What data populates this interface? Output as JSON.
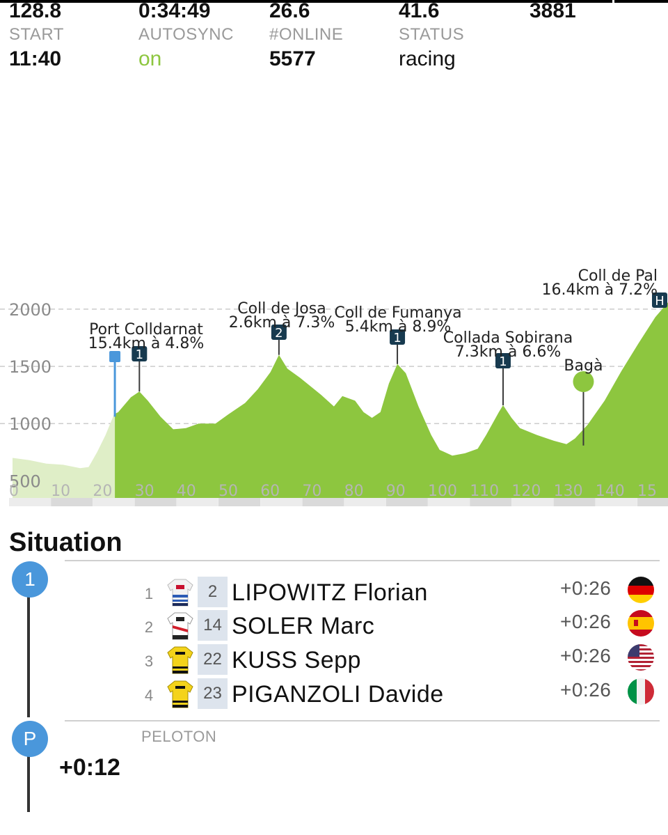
{
  "colors": {
    "accent_green": "#8dc63f",
    "timeline_blue": "#4a97db",
    "climb_marker": "#173a4f"
  },
  "stats": {
    "row1": [
      {
        "value": "128.8",
        "label": "START",
        "sub": "11:40"
      },
      {
        "value": "0:34:49",
        "label": "AUTOSYNC",
        "sub": "on"
      },
      {
        "value": "26.6",
        "label": "#ONLINE",
        "sub": "5577"
      },
      {
        "value": "41.6",
        "label": "STATUS",
        "sub": "racing"
      },
      {
        "value": "3881"
      }
    ]
  },
  "profile": {
    "y_ticks": [
      "2000",
      "1500",
      "1000",
      "500"
    ],
    "x_ticks": [
      "0",
      "10",
      "20",
      "30",
      "40",
      "50",
      "60",
      "70",
      "80",
      "90",
      "100",
      "110",
      "120",
      "130",
      "140",
      "15"
    ],
    "km_max": 155,
    "elev_min": 350,
    "elev_max": 2450,
    "current_km": 24.2,
    "elevation": [
      [
        0,
        700
      ],
      [
        4,
        680
      ],
      [
        8,
        650
      ],
      [
        12,
        640
      ],
      [
        16,
        610
      ],
      [
        18,
        620
      ],
      [
        20,
        750
      ],
      [
        22,
        900
      ],
      [
        24,
        1080
      ],
      [
        25,
        1100
      ],
      [
        28,
        1230
      ],
      [
        30,
        1280
      ],
      [
        32,
        1200
      ],
      [
        35,
        1060
      ],
      [
        38,
        950
      ],
      [
        41,
        960
      ],
      [
        44,
        1000
      ],
      [
        48,
        1000
      ],
      [
        51,
        1080
      ],
      [
        55,
        1180
      ],
      [
        58,
        1300
      ],
      [
        61,
        1450
      ],
      [
        63,
        1600
      ],
      [
        65,
        1480
      ],
      [
        68,
        1400
      ],
      [
        71,
        1310
      ],
      [
        73,
        1250
      ],
      [
        76,
        1150
      ],
      [
        78,
        1240
      ],
      [
        81,
        1200
      ],
      [
        83,
        1100
      ],
      [
        85,
        1050
      ],
      [
        87,
        1100
      ],
      [
        89,
        1350
      ],
      [
        91,
        1520
      ],
      [
        93,
        1440
      ],
      [
        96,
        1150
      ],
      [
        99,
        900
      ],
      [
        101,
        770
      ],
      [
        104,
        720
      ],
      [
        107,
        740
      ],
      [
        110,
        780
      ],
      [
        112,
        900
      ],
      [
        115,
        1100
      ],
      [
        116,
        1160
      ],
      [
        118,
        1050
      ],
      [
        120,
        960
      ],
      [
        124,
        900
      ],
      [
        128,
        850
      ],
      [
        131,
        820
      ],
      [
        133,
        870
      ],
      [
        136,
        990
      ],
      [
        140,
        1200
      ],
      [
        144,
        1460
      ],
      [
        148,
        1700
      ],
      [
        152,
        1930
      ],
      [
        155,
        2060
      ]
    ],
    "climbs": [
      {
        "name": "Port Colldarnat",
        "detail": "15.4km à 4.8%",
        "cat": "1",
        "km": 30,
        "elev": 1280
      },
      {
        "name": "Coll de Josa",
        "detail": "2.6km à 7.3%",
        "cat": "2",
        "km": 63,
        "elev": 1600
      },
      {
        "name": "Coll de Fumanya",
        "detail": "5.4km à 8.9%",
        "cat": "1",
        "km": 91,
        "elev": 1520
      },
      {
        "name": "Collada Sobirana",
        "detail": "7.3km à 6.6%",
        "cat": "1",
        "km": 116,
        "elev": 1160
      },
      {
        "name": "Coll de Pal",
        "detail": "16.4km à 7.2%",
        "cat": "H",
        "km": 155,
        "elev": 2060
      }
    ],
    "sprint": {
      "name": "Bagà",
      "km": 135,
      "elev": 820
    }
  },
  "situation": {
    "title": "Situation",
    "groups": [
      {
        "badge": "1",
        "riders": [
          {
            "pos": "1",
            "bib": "2",
            "name": "LIPOWITZ Florian",
            "gap": "+0:26",
            "flag": "germany",
            "jersey": "bora"
          },
          {
            "pos": "2",
            "bib": "14",
            "name": "SOLER Marc",
            "gap": "+0:26",
            "flag": "spain",
            "jersey": "uae"
          },
          {
            "pos": "3",
            "bib": "22",
            "name": "KUSS Sepp",
            "gap": "+0:26",
            "flag": "usa",
            "jersey": "visma"
          },
          {
            "pos": "4",
            "bib": "23",
            "name": "PIGANZOLI Davide",
            "gap": "+0:26",
            "flag": "italy",
            "jersey": "visma"
          }
        ]
      },
      {
        "badge": "P",
        "label": "PELOTON",
        "gap": "+0:12"
      }
    ]
  }
}
